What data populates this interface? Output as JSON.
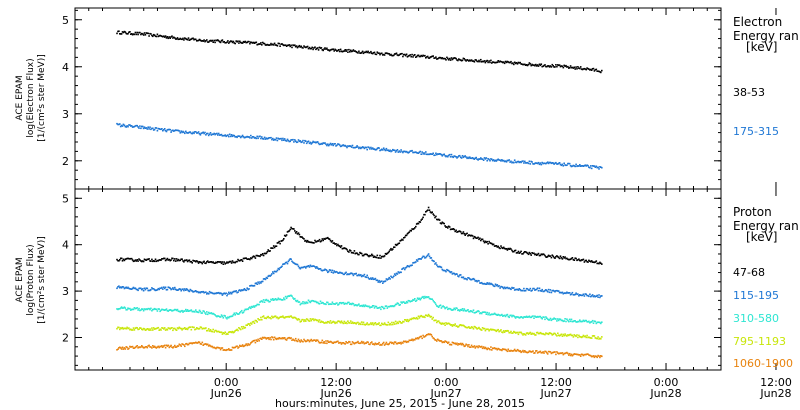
{
  "chart_data": [
    {
      "type": "scatter",
      "panel": "electron",
      "ylabel_lines": [
        "ACE EPAM",
        "log(Electron Flux)",
        "[1/(cm²s ster MeV)]"
      ],
      "ylim": [
        1.4,
        5.25
      ],
      "yticks": [
        2,
        3,
        4,
        5
      ],
      "legend_title": [
        "Electron",
        "Energy ran",
        "[keV]"
      ],
      "legend_placement": "right",
      "series": [
        {
          "name": "38-53",
          "color": "#000000",
          "x": [
            -24,
            -18,
            -12,
            -6,
            0,
            6,
            12,
            18,
            24,
            30,
            36,
            42,
            48,
            54,
            60,
            66,
            72,
            78,
            82
          ],
          "y": [
            4.75,
            4.71,
            4.64,
            4.58,
            4.55,
            4.52,
            4.48,
            4.42,
            4.37,
            4.33,
            4.28,
            4.24,
            4.19,
            4.15,
            4.11,
            4.07,
            4.03,
            3.98,
            3.92
          ]
        },
        {
          "name": "175-315",
          "color": "#1f77d4",
          "x": [
            -24,
            -18,
            -12,
            -6,
            0,
            6,
            12,
            18,
            24,
            30,
            36,
            42,
            48,
            54,
            60,
            66,
            72,
            78,
            82
          ],
          "y": [
            2.78,
            2.72,
            2.65,
            2.6,
            2.56,
            2.52,
            2.47,
            2.41,
            2.35,
            2.29,
            2.24,
            2.19,
            2.13,
            2.07,
            2.02,
            1.98,
            1.95,
            1.9,
            1.86
          ]
        }
      ]
    },
    {
      "type": "scatter",
      "panel": "proton",
      "ylabel_lines": [
        "ACE EPAM",
        "log(Proton Flux)",
        "[1/(cm²s ster MeV)]"
      ],
      "ylim": [
        1.3,
        5.2
      ],
      "yticks": [
        2,
        3,
        4,
        5
      ],
      "legend_title": [
        "Proton",
        "Energy ran",
        "[keV]"
      ],
      "legend_placement": "right",
      "series": [
        {
          "name": "47-68",
          "color": "#000000",
          "x": [
            -24,
            -18,
            -12,
            -6,
            0,
            4,
            8,
            12,
            14,
            16,
            18,
            22,
            26,
            30,
            34,
            38,
            42,
            44,
            46,
            48,
            52,
            56,
            60,
            64,
            68,
            72,
            76,
            80,
            82
          ],
          "y": [
            3.7,
            3.68,
            3.7,
            3.64,
            3.62,
            3.7,
            3.8,
            4.1,
            4.4,
            4.2,
            4.05,
            4.15,
            3.9,
            3.8,
            3.75,
            4.1,
            4.5,
            4.8,
            4.55,
            4.4,
            4.25,
            4.1,
            3.95,
            3.85,
            3.8,
            3.75,
            3.7,
            3.65,
            3.62
          ]
        },
        {
          "name": "115-195",
          "color": "#1f77d4",
          "x": [
            -24,
            -18,
            -12,
            -6,
            0,
            4,
            8,
            12,
            14,
            16,
            18,
            22,
            26,
            30,
            34,
            38,
            42,
            44,
            46,
            48,
            52,
            56,
            60,
            64,
            68,
            72,
            76,
            80,
            82
          ],
          "y": [
            3.1,
            3.05,
            3.08,
            3.0,
            2.95,
            3.05,
            3.25,
            3.55,
            3.7,
            3.5,
            3.55,
            3.45,
            3.4,
            3.35,
            3.2,
            3.45,
            3.7,
            3.8,
            3.55,
            3.45,
            3.3,
            3.2,
            3.1,
            3.05,
            3.05,
            3.0,
            2.95,
            2.92,
            2.9
          ]
        },
        {
          "name": "310-580",
          "color": "#2ee6d2",
          "x": [
            -24,
            -18,
            -12,
            -6,
            0,
            4,
            8,
            12,
            14,
            16,
            18,
            22,
            26,
            30,
            34,
            38,
            42,
            44,
            46,
            48,
            52,
            56,
            60,
            64,
            68,
            72,
            76,
            80,
            82
          ],
          "y": [
            2.65,
            2.62,
            2.6,
            2.58,
            2.45,
            2.6,
            2.8,
            2.85,
            2.9,
            2.75,
            2.8,
            2.75,
            2.75,
            2.7,
            2.65,
            2.75,
            2.85,
            2.9,
            2.7,
            2.65,
            2.6,
            2.55,
            2.5,
            2.45,
            2.45,
            2.4,
            2.38,
            2.35,
            2.33
          ]
        },
        {
          "name": "795-1193",
          "color": "#c8e60a",
          "x": [
            -24,
            -18,
            -12,
            -6,
            0,
            4,
            8,
            12,
            14,
            16,
            18,
            22,
            26,
            30,
            34,
            38,
            42,
            44,
            46,
            48,
            52,
            56,
            60,
            64,
            68,
            72,
            76,
            80,
            82
          ],
          "y": [
            2.22,
            2.2,
            2.2,
            2.22,
            2.1,
            2.25,
            2.45,
            2.45,
            2.45,
            2.38,
            2.4,
            2.35,
            2.35,
            2.32,
            2.3,
            2.35,
            2.45,
            2.5,
            2.35,
            2.3,
            2.25,
            2.2,
            2.15,
            2.1,
            2.1,
            2.08,
            2.05,
            2.03,
            2.0
          ]
        },
        {
          "name": "1060-1900",
          "color": "#e8830e",
          "x": [
            -24,
            -18,
            -12,
            -6,
            0,
            4,
            8,
            12,
            14,
            16,
            18,
            22,
            26,
            30,
            34,
            38,
            42,
            44,
            46,
            48,
            52,
            56,
            60,
            64,
            68,
            72,
            76,
            80,
            82
          ],
          "y": [
            1.78,
            1.82,
            1.82,
            1.9,
            1.75,
            1.85,
            2.0,
            2.0,
            1.98,
            1.95,
            1.95,
            1.92,
            1.9,
            1.9,
            1.88,
            1.9,
            2.0,
            2.1,
            1.95,
            1.9,
            1.85,
            1.8,
            1.75,
            1.72,
            1.7,
            1.68,
            1.65,
            1.62,
            1.6
          ]
        }
      ]
    }
  ],
  "x_axis": {
    "xlim": [
      -33,
      108
    ],
    "ticks": [
      {
        "x": 0,
        "label1": "0:00",
        "label2": "Jun26"
      },
      {
        "x": 24,
        "label1": "12:00",
        "label2": "Jun26"
      },
      {
        "x": 48,
        "label1": "0:00",
        "label2": "Jun27"
      },
      {
        "x": 72,
        "label1": "12:00",
        "label2": "Jun27"
      },
      {
        "x": 96,
        "label1": "0:00",
        "label2": "Jun28"
      },
      {
        "x": 120,
        "label1": "12:00",
        "label2": "Jun28"
      }
    ],
    "xlabel": "hours:minutes, June 25, 2015 - June 28, 2015"
  }
}
